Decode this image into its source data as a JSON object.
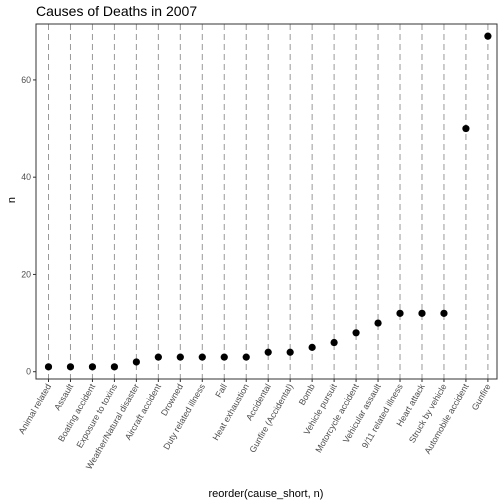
{
  "chart_data": {
    "type": "scatter",
    "title": "Causes of Deaths in 2007",
    "xlabel": "reorder(cause_short, n)",
    "ylabel": "n",
    "ylim": [
      -1.5,
      71.5
    ],
    "yticks": [
      0,
      20,
      40,
      60
    ],
    "grid": "vertical dashed lines at each category",
    "categories": [
      "Animal related",
      "Assault",
      "Boating accident",
      "Exposure to toxins",
      "Weather/Natural disaster",
      "Aircraft accident",
      "Drowned",
      "Duty related illness",
      "Fall",
      "Heat exhaustion",
      "Accidental",
      "Gunfire (Accidental)",
      "Bomb",
      "Vehicle pursuit",
      "Motorcycle accident",
      "Vehicular assault",
      "9/11 related illness",
      "Heart attack",
      "Struck by vehicle",
      "Automobile accident",
      "Gunfire"
    ],
    "values": [
      1,
      1,
      1,
      1,
      2,
      3,
      3,
      3,
      3,
      3,
      4,
      4,
      5,
      6,
      8,
      10,
      12,
      12,
      12,
      50,
      69
    ],
    "point_color": "#000000",
    "panel_border_color": "#333333",
    "gridline_color": "#999999"
  }
}
